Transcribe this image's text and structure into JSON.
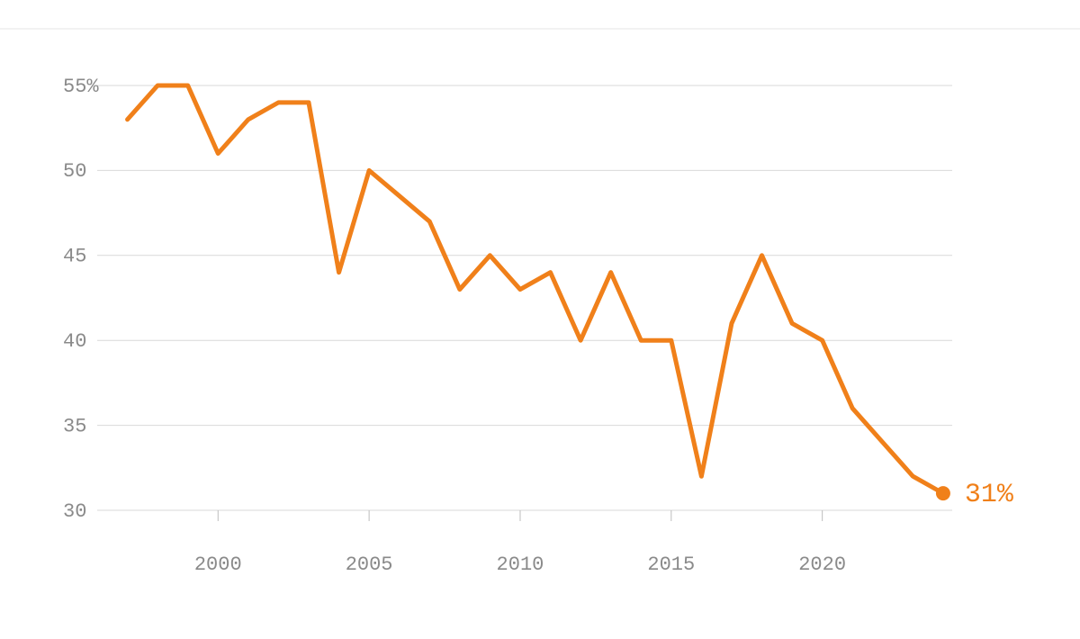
{
  "chart_data": {
    "type": "line",
    "x": [
      1997,
      1998,
      1999,
      2000,
      2001,
      2002,
      2003,
      2004,
      2005,
      2006,
      2007,
      2008,
      2009,
      2010,
      2011,
      2012,
      2013,
      2014,
      2015,
      2016,
      2017,
      2018,
      2019,
      2020,
      2021,
      2022,
      2023,
      2024
    ],
    "series": [
      {
        "color": "#f0801a",
        "values": [
          53,
          55,
          55,
          51,
          53,
          54,
          54,
          44,
          50,
          48.5,
          47,
          43,
          45,
          43,
          44,
          40,
          44,
          40,
          40,
          32,
          41,
          45,
          41,
          40,
          36,
          34,
          32,
          31
        ],
        "value_labels": [
          null,
          null,
          null,
          null,
          null,
          null,
          null,
          null,
          null,
          null,
          null,
          null,
          null,
          null,
          null,
          null,
          null,
          null,
          null,
          null,
          null,
          null,
          null,
          null,
          null,
          null,
          null,
          "31%"
        ]
      }
    ],
    "xlim": [
      1996,
      2024.3
    ],
    "xticks": [
      2000,
      2005,
      2010,
      2015,
      2020
    ],
    "ylim": [
      30,
      55
    ],
    "yticks": [
      30,
      35,
      40,
      45,
      50,
      {
        "value": 55,
        "label": "55%"
      }
    ],
    "grid": true
  }
}
